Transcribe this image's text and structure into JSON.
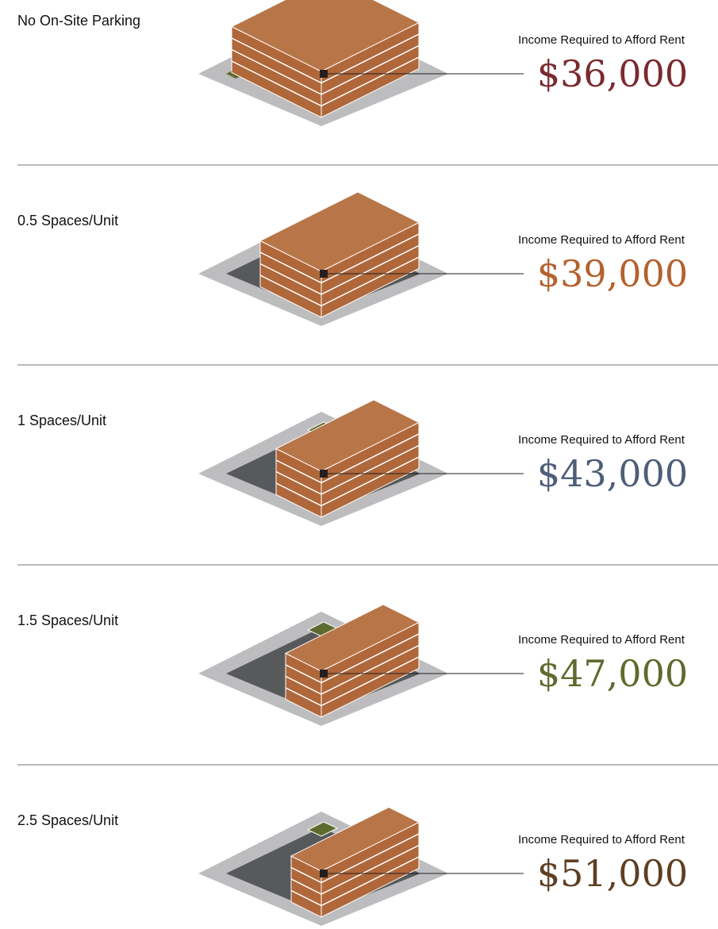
{
  "rows": [
    {
      "label": "No On-Site Parking",
      "caption": "Income Required to Afford Rent",
      "amount": "$36,000",
      "color": "#7a2a30"
    },
    {
      "label": "0.5 Spaces/Unit",
      "caption": "Income Required to Afford Rent",
      "amount": "$39,000",
      "color": "#b5612e"
    },
    {
      "label": "1 Spaces/Unit",
      "caption": "Income Required to Afford Rent",
      "amount": "$43,000",
      "color": "#4e5e78"
    },
    {
      "label": "1.5 Spaces/Unit",
      "caption": "Income Required to Afford Rent",
      "amount": "$47,000",
      "color": "#5f6b2e"
    },
    {
      "label": "2.5 Spaces/Unit",
      "caption": "Income Required to Afford Rent",
      "amount": "$51,000",
      "color": "#5e3f22"
    }
  ]
}
